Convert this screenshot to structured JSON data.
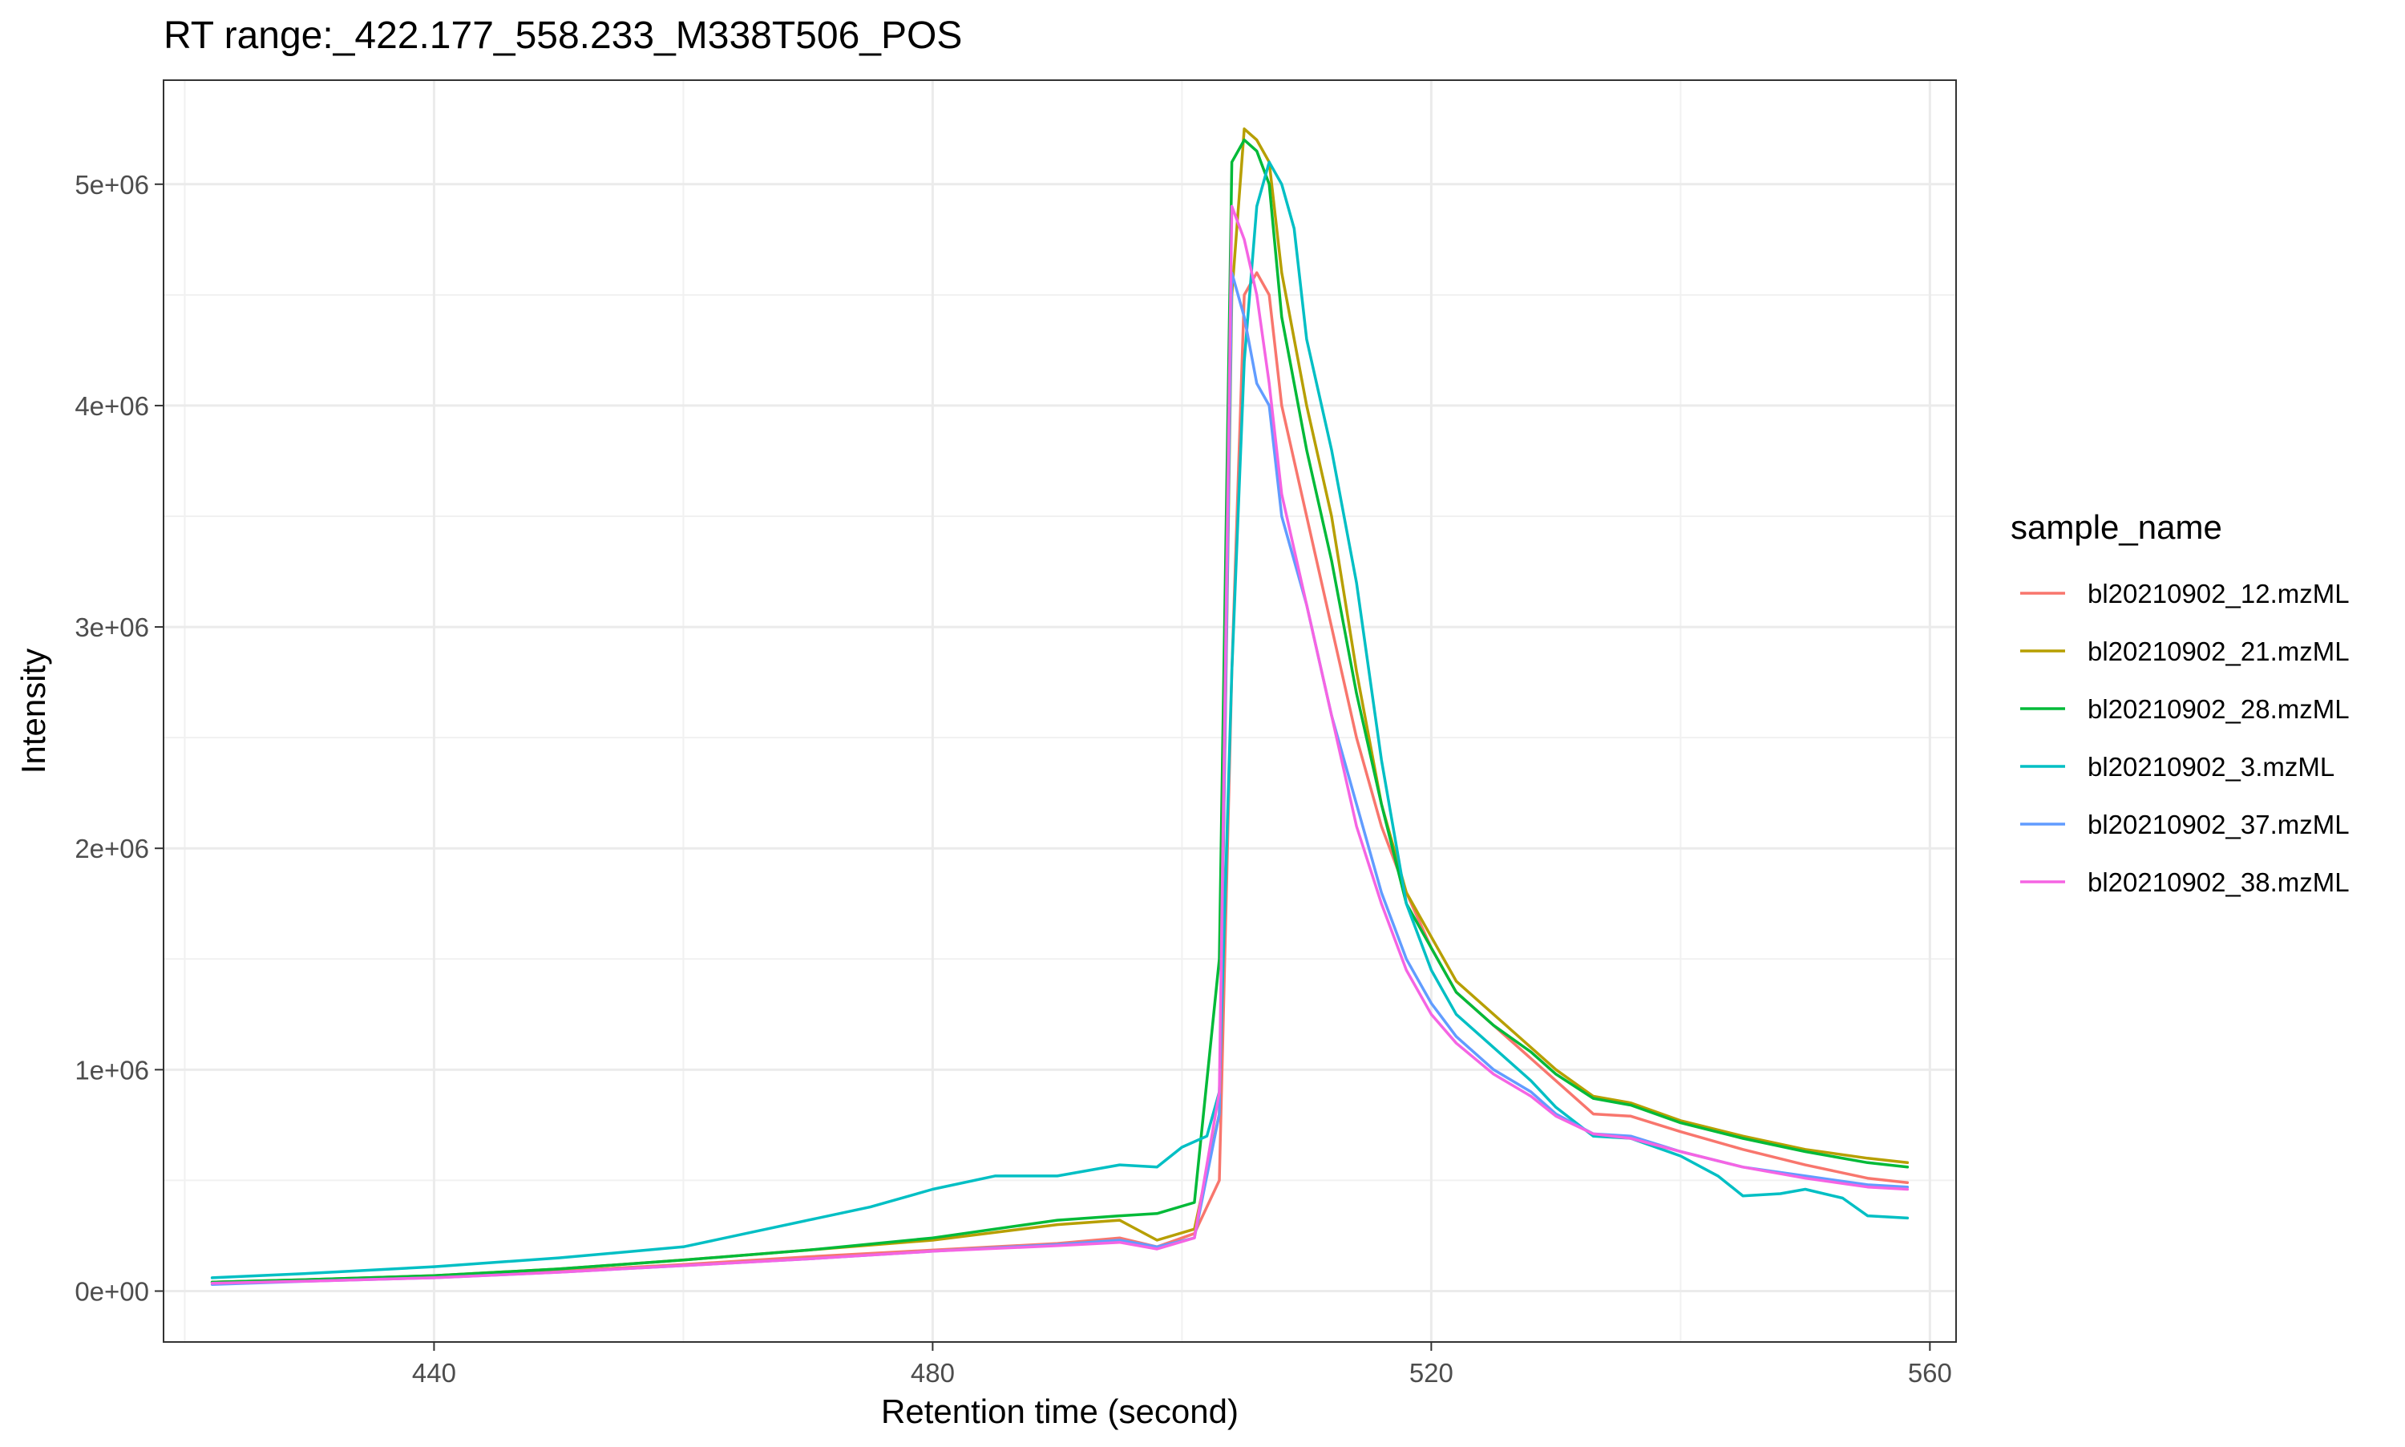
{
  "chart_data": {
    "type": "line",
    "title": "RT range:_422.177_558.233_M338T506_POS",
    "xlabel": "Retention time (second)",
    "ylabel": "Intensity",
    "xlim": [
      418.3,
      562.1
    ],
    "ylim": [
      -230000,
      5470000
    ],
    "x_ticks": [
      440,
      480,
      520,
      560
    ],
    "x_tick_labels": [
      "440",
      "480",
      "520",
      "560"
    ],
    "x_minor_ticks": [
      420,
      460,
      500,
      540
    ],
    "y_ticks": [
      0,
      1000000,
      2000000,
      3000000,
      4000000,
      5000000
    ],
    "y_tick_labels": [
      "0e+00",
      "1e+06",
      "2e+06",
      "3e+06",
      "4e+06",
      "5e+06"
    ],
    "y_minor_ticks": [
      500000,
      1500000,
      2500000,
      3500000,
      4500000
    ],
    "grid": true,
    "legend": {
      "title": "sample_name",
      "position": "right"
    },
    "series": [
      {
        "name": "bl20210902_12.mzML",
        "color": "#F8766D",
        "points": [
          [
            422.2,
            40000
          ],
          [
            430,
            50000
          ],
          [
            440,
            65000
          ],
          [
            450,
            90000
          ],
          [
            460,
            120000
          ],
          [
            470,
            155000
          ],
          [
            480,
            185000
          ],
          [
            490,
            215000
          ],
          [
            495,
            240000
          ],
          [
            498,
            200000
          ],
          [
            501,
            260000
          ],
          [
            503,
            500000
          ],
          [
            504,
            2800000
          ],
          [
            505,
            4500000
          ],
          [
            506,
            4600000
          ],
          [
            507,
            4500000
          ],
          [
            508,
            4000000
          ],
          [
            510,
            3500000
          ],
          [
            512,
            3000000
          ],
          [
            514,
            2500000
          ],
          [
            516,
            2100000
          ],
          [
            518,
            1800000
          ],
          [
            520,
            1550000
          ],
          [
            522,
            1350000
          ],
          [
            525,
            1200000
          ],
          [
            528,
            1050000
          ],
          [
            530,
            950000
          ],
          [
            533,
            800000
          ],
          [
            536,
            790000
          ],
          [
            540,
            720000
          ],
          [
            545,
            640000
          ],
          [
            550,
            570000
          ],
          [
            555,
            510000
          ],
          [
            558.2,
            490000
          ]
        ]
      },
      {
        "name": "bl20210902_21.mzML",
        "color": "#B79F00",
        "points": [
          [
            422.2,
            40000
          ],
          [
            430,
            52000
          ],
          [
            440,
            70000
          ],
          [
            450,
            100000
          ],
          [
            460,
            140000
          ],
          [
            470,
            185000
          ],
          [
            480,
            230000
          ],
          [
            490,
            300000
          ],
          [
            495,
            320000
          ],
          [
            498,
            230000
          ],
          [
            501,
            280000
          ],
          [
            503,
            800000
          ],
          [
            504,
            4500000
          ],
          [
            505,
            5250000
          ],
          [
            506,
            5200000
          ],
          [
            507,
            5100000
          ],
          [
            508,
            4600000
          ],
          [
            510,
            4000000
          ],
          [
            512,
            3500000
          ],
          [
            514,
            2800000
          ],
          [
            516,
            2200000
          ],
          [
            518,
            1800000
          ],
          [
            520,
            1600000
          ],
          [
            522,
            1400000
          ],
          [
            525,
            1250000
          ],
          [
            528,
            1100000
          ],
          [
            530,
            1000000
          ],
          [
            533,
            880000
          ],
          [
            536,
            850000
          ],
          [
            540,
            770000
          ],
          [
            545,
            700000
          ],
          [
            550,
            640000
          ],
          [
            555,
            600000
          ],
          [
            558.2,
            580000
          ]
        ]
      },
      {
        "name": "bl20210902_28.mzML",
        "color": "#00BA38",
        "points": [
          [
            422.2,
            40000
          ],
          [
            430,
            52000
          ],
          [
            440,
            70000
          ],
          [
            450,
            100000
          ],
          [
            460,
            140000
          ],
          [
            470,
            185000
          ],
          [
            480,
            240000
          ],
          [
            490,
            320000
          ],
          [
            495,
            340000
          ],
          [
            498,
            350000
          ],
          [
            501,
            400000
          ],
          [
            503,
            1500000
          ],
          [
            504,
            5100000
          ],
          [
            505,
            5200000
          ],
          [
            506,
            5150000
          ],
          [
            507,
            5000000
          ],
          [
            508,
            4400000
          ],
          [
            510,
            3800000
          ],
          [
            512,
            3300000
          ],
          [
            514,
            2700000
          ],
          [
            516,
            2200000
          ],
          [
            518,
            1750000
          ],
          [
            520,
            1550000
          ],
          [
            522,
            1350000
          ],
          [
            525,
            1200000
          ],
          [
            528,
            1080000
          ],
          [
            530,
            980000
          ],
          [
            533,
            870000
          ],
          [
            536,
            840000
          ],
          [
            540,
            760000
          ],
          [
            545,
            690000
          ],
          [
            550,
            630000
          ],
          [
            555,
            580000
          ],
          [
            558.2,
            560000
          ]
        ]
      },
      {
        "name": "bl20210902_3.mzML",
        "color": "#00BFC4",
        "points": [
          [
            422.2,
            60000
          ],
          [
            430,
            80000
          ],
          [
            440,
            110000
          ],
          [
            450,
            150000
          ],
          [
            460,
            200000
          ],
          [
            465,
            260000
          ],
          [
            470,
            320000
          ],
          [
            475,
            380000
          ],
          [
            480,
            460000
          ],
          [
            485,
            520000
          ],
          [
            490,
            520000
          ],
          [
            495,
            570000
          ],
          [
            498,
            560000
          ],
          [
            500,
            650000
          ],
          [
            502,
            700000
          ],
          [
            503,
            900000
          ],
          [
            504,
            2800000
          ],
          [
            505,
            4200000
          ],
          [
            506,
            4900000
          ],
          [
            507,
            5100000
          ],
          [
            508,
            5000000
          ],
          [
            509,
            4800000
          ],
          [
            510,
            4300000
          ],
          [
            512,
            3800000
          ],
          [
            514,
            3200000
          ],
          [
            516,
            2400000
          ],
          [
            518,
            1750000
          ],
          [
            520,
            1450000
          ],
          [
            522,
            1250000
          ],
          [
            525,
            1100000
          ],
          [
            528,
            950000
          ],
          [
            530,
            830000
          ],
          [
            533,
            700000
          ],
          [
            536,
            690000
          ],
          [
            540,
            610000
          ],
          [
            543,
            520000
          ],
          [
            545,
            430000
          ],
          [
            548,
            440000
          ],
          [
            550,
            460000
          ],
          [
            553,
            420000
          ],
          [
            555,
            340000
          ],
          [
            558.2,
            330000
          ]
        ]
      },
      {
        "name": "bl20210902_37.mzML",
        "color": "#619CFF",
        "points": [
          [
            422.2,
            30000
          ],
          [
            430,
            45000
          ],
          [
            440,
            60000
          ],
          [
            450,
            85000
          ],
          [
            460,
            115000
          ],
          [
            470,
            145000
          ],
          [
            480,
            180000
          ],
          [
            490,
            210000
          ],
          [
            495,
            230000
          ],
          [
            498,
            200000
          ],
          [
            501,
            240000
          ],
          [
            503,
            800000
          ],
          [
            504,
            4600000
          ],
          [
            505,
            4400000
          ],
          [
            506,
            4100000
          ],
          [
            507,
            4000000
          ],
          [
            508,
            3500000
          ],
          [
            510,
            3100000
          ],
          [
            512,
            2600000
          ],
          [
            514,
            2200000
          ],
          [
            516,
            1800000
          ],
          [
            518,
            1500000
          ],
          [
            520,
            1300000
          ],
          [
            522,
            1150000
          ],
          [
            525,
            1000000
          ],
          [
            528,
            900000
          ],
          [
            530,
            800000
          ],
          [
            533,
            710000
          ],
          [
            536,
            700000
          ],
          [
            540,
            630000
          ],
          [
            545,
            560000
          ],
          [
            550,
            520000
          ],
          [
            555,
            480000
          ],
          [
            558.2,
            470000
          ]
        ]
      },
      {
        "name": "bl20210902_38.mzML",
        "color": "#F564E3",
        "points": [
          [
            422.2,
            35000
          ],
          [
            430,
            45000
          ],
          [
            440,
            60000
          ],
          [
            450,
            85000
          ],
          [
            460,
            115000
          ],
          [
            470,
            145000
          ],
          [
            480,
            180000
          ],
          [
            490,
            205000
          ],
          [
            495,
            220000
          ],
          [
            498,
            190000
          ],
          [
            501,
            240000
          ],
          [
            503,
            900000
          ],
          [
            504,
            4900000
          ],
          [
            505,
            4750000
          ],
          [
            506,
            4500000
          ],
          [
            507,
            4100000
          ],
          [
            508,
            3600000
          ],
          [
            510,
            3100000
          ],
          [
            512,
            2600000
          ],
          [
            514,
            2100000
          ],
          [
            516,
            1750000
          ],
          [
            518,
            1450000
          ],
          [
            520,
            1250000
          ],
          [
            522,
            1120000
          ],
          [
            525,
            980000
          ],
          [
            528,
            880000
          ],
          [
            530,
            790000
          ],
          [
            533,
            710000
          ],
          [
            536,
            690000
          ],
          [
            540,
            630000
          ],
          [
            545,
            560000
          ],
          [
            550,
            510000
          ],
          [
            555,
            470000
          ],
          [
            558.2,
            460000
          ]
        ]
      }
    ]
  }
}
